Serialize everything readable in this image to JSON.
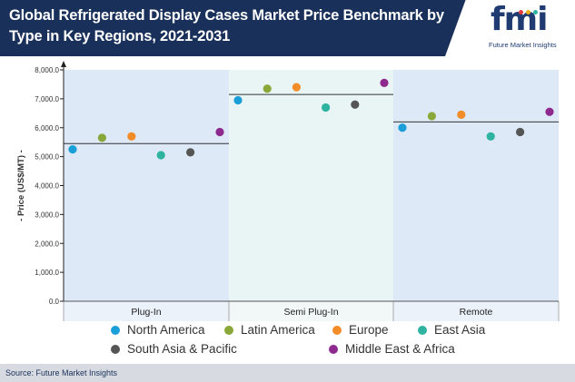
{
  "header": {
    "title": "Global Refrigerated Display Cases Market Price Benchmark by Type in Key Regions, 2021-2031",
    "logo_text": "fmi",
    "logo_subtitle": "Future Market Insights"
  },
  "footer": {
    "source": "Source: Future Market Insights"
  },
  "colors": {
    "header_bg": "#19305a",
    "panel_light": "#dde9f6",
    "panel_alt": "#e9f4f4"
  },
  "chart_data": {
    "type": "scatter",
    "ylabel": "- Price (US$/MT) -",
    "ylim": [
      0,
      8000
    ],
    "yticks": [
      "0.0",
      "1,000.0",
      "2,000.0",
      "3,000.0",
      "4,000.0",
      "5,000.0",
      "6,000.0",
      "7,000.0",
      "8,000.0"
    ],
    "categories": [
      "Plug-In",
      "Semi Plug-In",
      "Remote"
    ],
    "benchmarks": [
      5450,
      7150,
      6200
    ],
    "series": [
      {
        "name": "North America",
        "color": "#1a9fd9",
        "values": [
          5250,
          6950,
          6000
        ]
      },
      {
        "name": "Latin America",
        "color": "#8aa83a",
        "values": [
          5650,
          7350,
          6400
        ]
      },
      {
        "name": "Europe",
        "color": "#f28c28",
        "values": [
          5700,
          7400,
          6450
        ]
      },
      {
        "name": "East Asia",
        "color": "#2eb3a0",
        "values": [
          5050,
          6700,
          5700
        ]
      },
      {
        "name": "South Asia & Pacific",
        "color": "#555555",
        "values": [
          5150,
          6800,
          5850
        ]
      },
      {
        "name": "Middle East & Africa",
        "color": "#8e2a8e",
        "values": [
          5850,
          7550,
          6550
        ]
      }
    ],
    "grid": false,
    "legend_position": "bottom"
  }
}
